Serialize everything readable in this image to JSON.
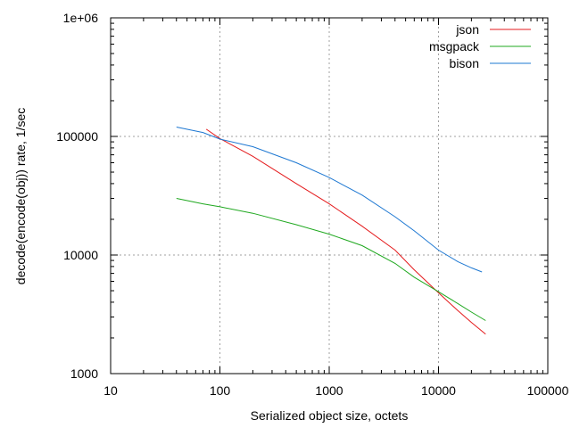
{
  "chart_data": {
    "type": "line",
    "title": "",
    "xlabel": "Serialized object size, octets",
    "ylabel": "decode(encode(obj)) rate, 1/sec",
    "xscale": "log",
    "yscale": "log",
    "xlim": [
      10,
      100000
    ],
    "ylim": [
      1000,
      1000000
    ],
    "x_tick_labels": [
      "10",
      "100",
      "1000",
      "10000",
      "100000"
    ],
    "x_tick_values": [
      10,
      100,
      1000,
      10000,
      100000
    ],
    "y_tick_labels": [
      "1000",
      "10000",
      "100000",
      "1e+06"
    ],
    "y_tick_values": [
      1000,
      10000,
      100000,
      1000000
    ],
    "grid": true,
    "legend_position": "top-right",
    "series": [
      {
        "name": "json",
        "color": "#e41a1c",
        "x": [
          75,
          100,
          200,
          500,
          1000,
          2000,
          4000,
          6000,
          10000,
          15000,
          20000,
          27000
        ],
        "y": [
          115000,
          96000,
          68000,
          40000,
          27000,
          17500,
          11000,
          7500,
          4800,
          3400,
          2700,
          2150
        ]
      },
      {
        "name": "msgpack",
        "color": "#1fa81f",
        "x": [
          40,
          70,
          100,
          200,
          500,
          1000,
          2000,
          4000,
          6000,
          10000,
          15000,
          20000,
          27000
        ],
        "y": [
          30000,
          27000,
          25500,
          22500,
          18000,
          15000,
          12000,
          8500,
          6500,
          4900,
          3900,
          3300,
          2800
        ]
      },
      {
        "name": "bison",
        "color": "#1e78d2",
        "x": [
          40,
          70,
          100,
          200,
          500,
          1000,
          2000,
          4000,
          6000,
          10000,
          15000,
          20000,
          25000
        ],
        "y": [
          120000,
          108000,
          95000,
          82000,
          60000,
          45000,
          32000,
          21000,
          16000,
          11000,
          8800,
          7800,
          7200
        ]
      }
    ]
  }
}
